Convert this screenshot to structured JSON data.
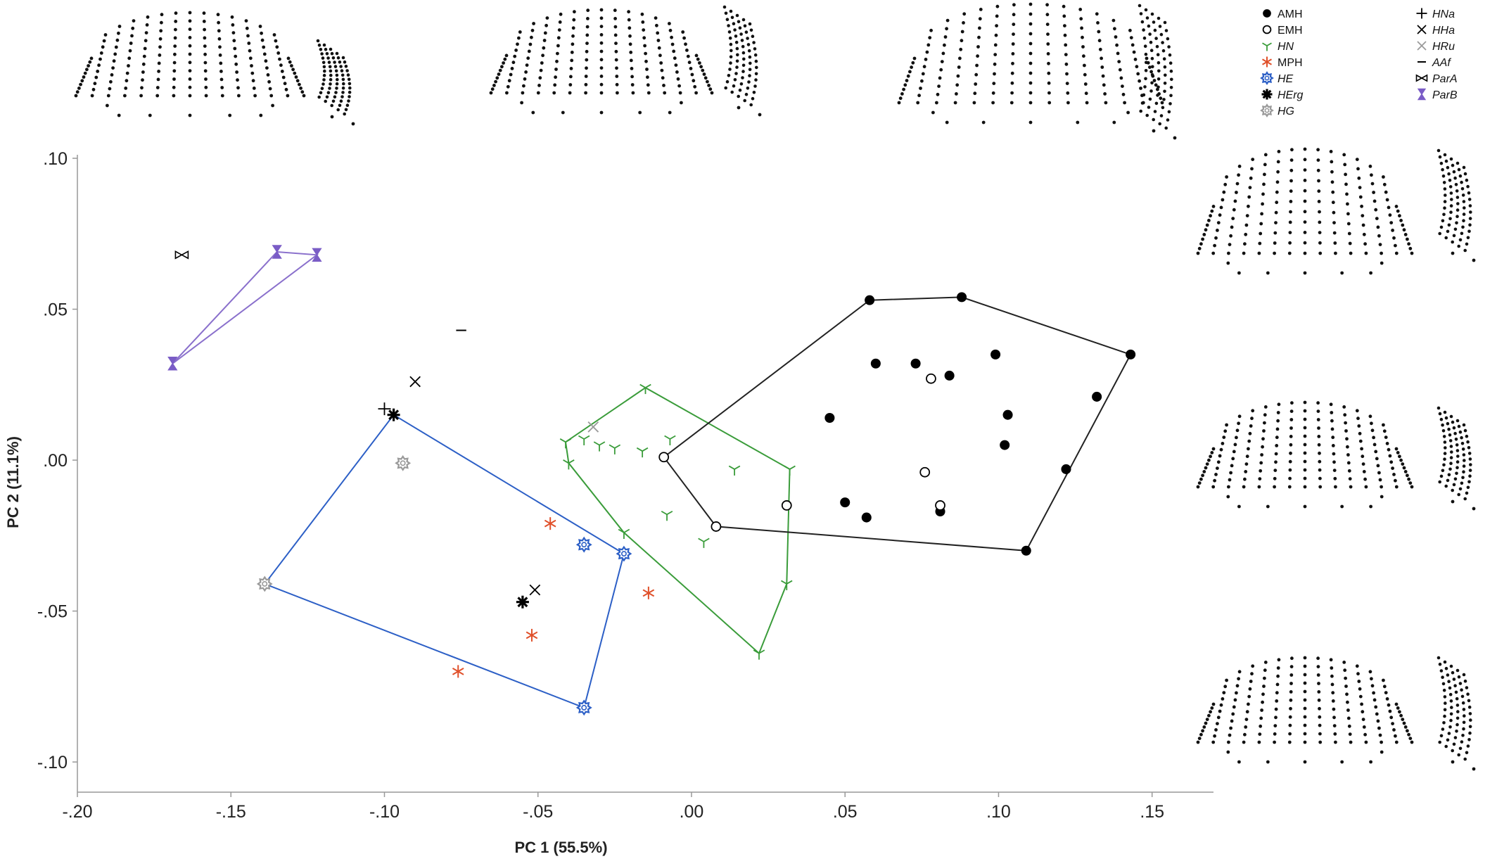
{
  "chart_data": {
    "type": "scatter",
    "xlabel": "PC 1 (55.5%)",
    "ylabel": "PC 2 (11.1%)",
    "xlim": [
      -0.2,
      0.17
    ],
    "ylim": [
      -0.11,
      0.1
    ],
    "xticks": [
      -0.2,
      -0.15,
      -0.1,
      -0.05,
      0.0,
      0.05,
      0.1,
      0.15
    ],
    "xtick_labels": [
      "-.20",
      "-.15",
      "-.10",
      "-.05",
      ".00",
      ".05",
      ".10",
      ".15"
    ],
    "yticks": [
      0.1,
      0.05,
      0.0,
      -0.05,
      -0.1
    ],
    "ytick_labels": [
      ".10",
      ".05",
      ".00",
      "-.05",
      "-.10"
    ],
    "grid": false,
    "legend_position": "top-right",
    "series": [
      {
        "name": "AMH",
        "marker": "filled-circle",
        "color": "#000000",
        "hull": true,
        "points": [
          [
            0.058,
            0.053
          ],
          [
            0.088,
            0.054
          ],
          [
            0.143,
            0.035
          ],
          [
            0.132,
            0.021
          ],
          [
            0.122,
            -0.003
          ],
          [
            0.109,
            -0.03
          ],
          [
            0.06,
            0.032
          ],
          [
            0.073,
            0.032
          ],
          [
            0.084,
            0.028
          ],
          [
            0.099,
            0.035
          ],
          [
            0.103,
            0.015
          ],
          [
            0.102,
            0.005
          ],
          [
            0.045,
            0.014
          ],
          [
            0.05,
            -0.014
          ],
          [
            0.057,
            -0.019
          ],
          [
            0.081,
            -0.017
          ]
        ]
      },
      {
        "name": "EMH",
        "marker": "open-circle",
        "color": "#000000",
        "hull": true,
        "points": [
          [
            -0.009,
            0.001
          ],
          [
            0.008,
            -0.022
          ],
          [
            0.031,
            -0.015
          ],
          [
            0.078,
            0.027
          ],
          [
            0.076,
            -0.004
          ],
          [
            0.081,
            -0.015
          ]
        ]
      },
      {
        "name": "HN",
        "marker": "tri",
        "color": "#3a9c3a",
        "hull": true,
        "points": [
          [
            -0.041,
            0.006
          ],
          [
            -0.015,
            0.024
          ],
          [
            0.032,
            -0.003
          ],
          [
            0.031,
            -0.041
          ],
          [
            0.022,
            -0.064
          ],
          [
            -0.04,
            -0.001
          ],
          [
            -0.035,
            0.007
          ],
          [
            -0.03,
            0.005
          ],
          [
            -0.025,
            0.004
          ],
          [
            -0.016,
            0.003
          ],
          [
            -0.007,
            0.007
          ],
          [
            0.014,
            -0.003
          ],
          [
            -0.008,
            -0.018
          ],
          [
            -0.022,
            -0.024
          ],
          [
            0.004,
            -0.027
          ]
        ]
      },
      {
        "name": "MPH",
        "marker": "star6",
        "color": "#e0502a",
        "hull": false,
        "points": [
          [
            -0.046,
            -0.021
          ],
          [
            -0.014,
            -0.044
          ],
          [
            -0.052,
            -0.058
          ],
          [
            -0.076,
            -0.07
          ]
        ]
      },
      {
        "name": "HE",
        "marker": "gear",
        "color": "#2c5fc6",
        "hull": true,
        "points": [
          [
            -0.035,
            -0.028
          ],
          [
            -0.022,
            -0.031
          ],
          [
            -0.035,
            -0.082
          ]
        ]
      },
      {
        "name": "HErg",
        "marker": "asterisk-bold",
        "color": "#000000",
        "hull": true,
        "points": [
          [
            -0.097,
            0.015
          ],
          [
            -0.055,
            -0.047
          ]
        ]
      },
      {
        "name": "HG",
        "marker": "gear",
        "color": "#9a9a9a",
        "hull": true,
        "points": [
          [
            -0.094,
            -0.001
          ],
          [
            -0.139,
            -0.041
          ]
        ]
      },
      {
        "name": "HNa",
        "marker": "plus",
        "color": "#000000",
        "hull": false,
        "points": [
          [
            -0.1,
            0.017
          ]
        ]
      },
      {
        "name": "HHa",
        "marker": "x",
        "color": "#000000",
        "hull": false,
        "points": [
          [
            -0.09,
            0.026
          ],
          [
            -0.051,
            -0.043
          ]
        ]
      },
      {
        "name": "HRu",
        "marker": "x",
        "color": "#9a9a9a",
        "hull": false,
        "points": [
          [
            -0.032,
            0.011
          ]
        ]
      },
      {
        "name": "AAf",
        "marker": "dash",
        "color": "#000000",
        "hull": false,
        "points": [
          [
            -0.075,
            0.043
          ]
        ]
      },
      {
        "name": "ParA",
        "marker": "bowtie",
        "color": "#000000",
        "hull": false,
        "points": [
          [
            -0.166,
            0.068
          ]
        ]
      },
      {
        "name": "ParB",
        "marker": "hourglass",
        "color": "#7a5cc6",
        "hull": true,
        "points": [
          [
            -0.135,
            0.069
          ],
          [
            -0.122,
            0.068
          ],
          [
            -0.169,
            0.032
          ]
        ]
      }
    ],
    "hull_colors": {
      "HE": "#2c5fc6",
      "HN": "#3a9c3a",
      "AMH_EMH": "#222222",
      "ParB": "#8a70cc"
    }
  }
}
